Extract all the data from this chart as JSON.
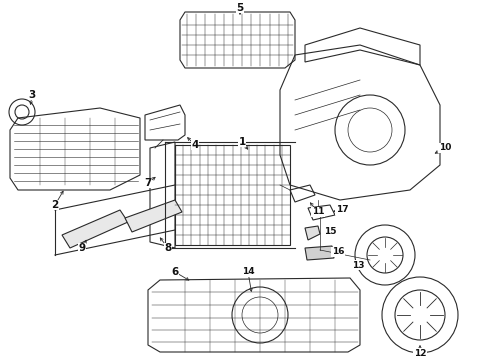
{
  "bg_color": "#ffffff",
  "line_color": "#2a2a2a",
  "text_color": "#111111",
  "fig_width": 4.9,
  "fig_height": 3.6,
  "dpi": 100
}
